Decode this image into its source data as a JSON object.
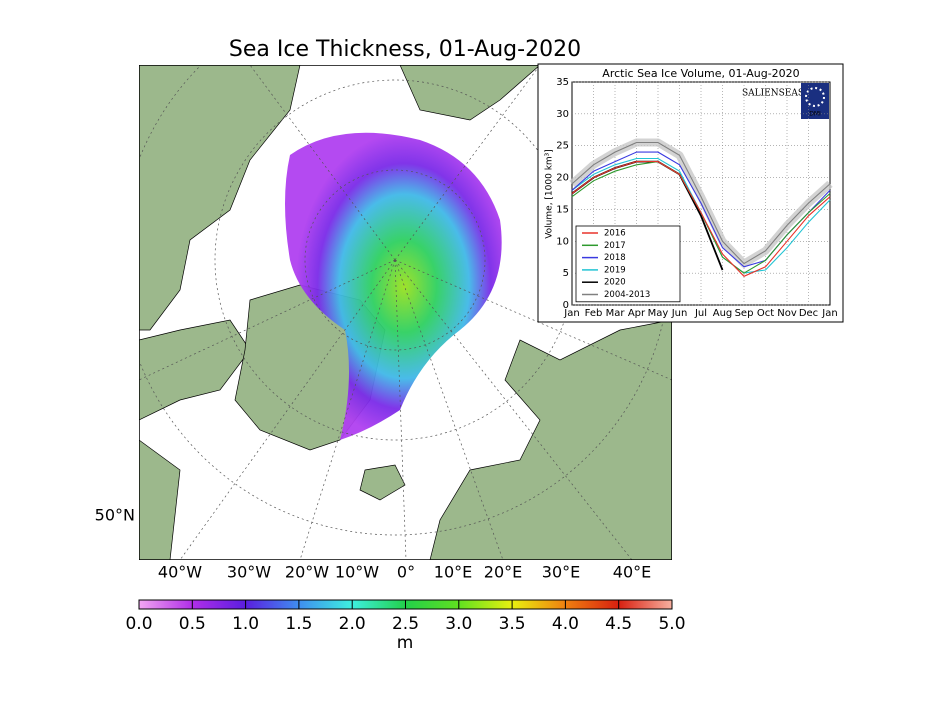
{
  "map": {
    "title": "Sea Ice Thickness, 01-Aug-2020",
    "lon_labels": [
      "40°W",
      "30°W",
      "20°W",
      "10°W",
      "0°",
      "10°E",
      "20°E",
      "30°E",
      "40°E"
    ],
    "lat_labels": [
      "50°N"
    ],
    "colorbar": {
      "lim": [
        0,
        5
      ],
      "ticks": [
        {
          "value": 0,
          "label": "0.0"
        },
        0.5,
        {
          "value": 1,
          "label": "1.0"
        },
        1.5,
        {
          "value": 2,
          "label": "2.0"
        },
        2.5,
        {
          "value": 3,
          "label": "3.0"
        },
        3.5,
        {
          "value": 4,
          "label": "4.0"
        },
        4.5,
        {
          "value": 5,
          "label": "5.0"
        }
      ],
      "label": "m"
    }
  },
  "inset_logo": {
    "name": "SALIENSEAS",
    "badge": "DMI"
  },
  "chart_data": {
    "type": "line",
    "title": "Arctic Sea Ice Volume, 01-Aug-2020",
    "ylabel": "Volume, [1000 km³]",
    "categories": [
      "Jan",
      "Feb",
      "Mar",
      "Apr",
      "May",
      "Jun",
      "Jul",
      "Aug",
      "Sep",
      "Oct",
      "Nov",
      "Dec",
      "Jan"
    ],
    "ylim": [
      0,
      35
    ],
    "yticks": [
      0,
      5,
      10,
      15,
      20,
      25,
      30,
      35
    ],
    "grid": true,
    "legend": "lower left",
    "series": [
      {
        "name": "2016",
        "color": "#e8322b",
        "values": [
          17.5,
          20,
          21.5,
          22.5,
          22.5,
          20.5,
          14.5,
          8,
          4.5,
          6,
          10,
          14,
          17
        ]
      },
      {
        "name": "2017",
        "color": "#2e9a2e",
        "values": [
          17,
          19.5,
          21,
          22,
          22.5,
          20.5,
          14.5,
          7.5,
          5,
          7,
          11,
          14.5,
          17.5
        ]
      },
      {
        "name": "2018",
        "color": "#3a3ae0",
        "values": [
          18,
          21,
          22.5,
          24,
          24,
          22,
          16,
          9,
          6,
          7,
          11,
          14.5,
          18
        ]
      },
      {
        "name": "2019",
        "color": "#22c4d4",
        "values": [
          18,
          20.5,
          22,
          23,
          23,
          21,
          14.5,
          7.5,
          5,
          5.5,
          9,
          13,
          16.5
        ]
      },
      {
        "name": "2020",
        "color": "#000000",
        "values": [
          17.5,
          20,
          21.5,
          22.5,
          22.5,
          20.5,
          14,
          5.5,
          null,
          null,
          null,
          null,
          null
        ]
      },
      {
        "name": "2004-2013",
        "color": "#808080",
        "values": [
          19,
          22,
          24,
          25.5,
          25.5,
          23.5,
          17,
          10,
          6.5,
          8.5,
          12.5,
          16,
          19
        ]
      }
    ]
  }
}
